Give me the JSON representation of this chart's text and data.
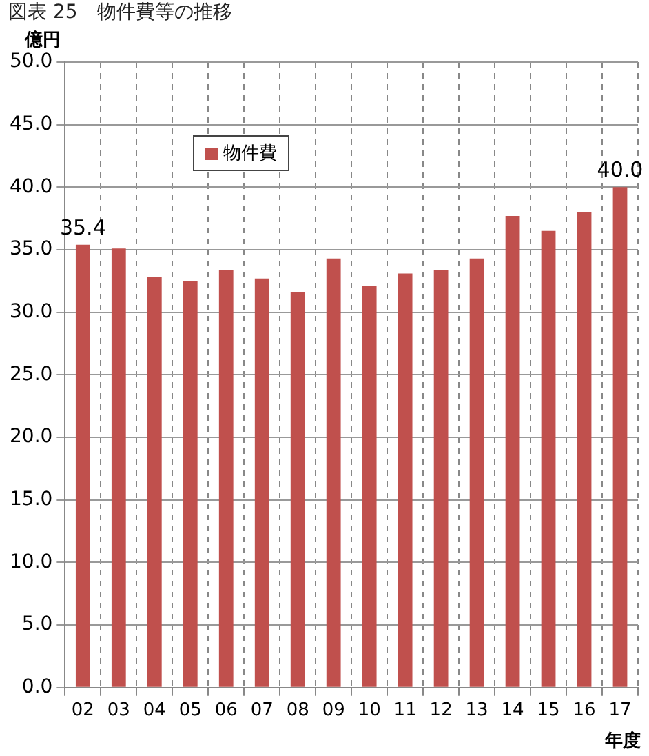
{
  "chart_data": {
    "type": "bar",
    "title": "図表 25　物件費等の推移",
    "ylabel": "億円",
    "xlabel": "年度",
    "categories": [
      "02",
      "03",
      "04",
      "05",
      "06",
      "07",
      "08",
      "09",
      "10",
      "11",
      "12",
      "13",
      "14",
      "15",
      "16",
      "17"
    ],
    "series": [
      {
        "name": "物件費",
        "color": "#c0504d",
        "values": [
          35.4,
          35.1,
          32.8,
          32.5,
          33.4,
          32.7,
          31.6,
          34.3,
          32.1,
          33.1,
          33.4,
          34.3,
          37.7,
          36.5,
          38.0,
          40.0
        ],
        "value_labels": [
          "35.4",
          null,
          null,
          null,
          null,
          null,
          null,
          null,
          null,
          null,
          null,
          null,
          null,
          null,
          null,
          "40.0"
        ]
      }
    ],
    "ylim": [
      0,
      50
    ],
    "yticks": [
      {
        "value": 0,
        "label": "0.0"
      },
      {
        "value": 5,
        "label": "5.0"
      },
      {
        "value": 10,
        "label": "10.0"
      },
      {
        "value": 15,
        "label": "15.0"
      },
      {
        "value": 20,
        "label": "20.0"
      },
      {
        "value": 25,
        "label": "25.0"
      },
      {
        "value": 30,
        "label": "30.0"
      },
      {
        "value": 35,
        "label": "35.0"
      },
      {
        "value": 40,
        "label": "40.0"
      },
      {
        "value": 45,
        "label": "45.0"
      },
      {
        "value": 50,
        "label": "50.0"
      }
    ],
    "grid": true,
    "legend": "top left"
  }
}
